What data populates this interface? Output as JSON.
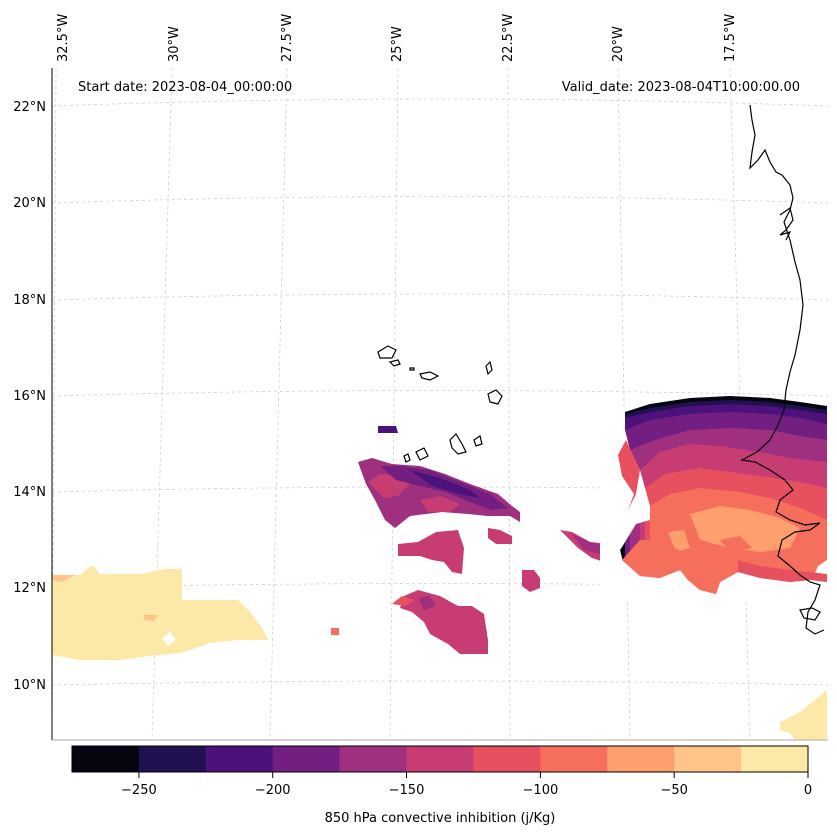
{
  "map": {
    "start_date_label": "Start date: 2023-08-04_00:00:00",
    "valid_date_label": "Valid_date: 2023-08-04T10:00:00.00",
    "lon_labels": [
      "32.5°W",
      "30°W",
      "27.5°W",
      "25°W",
      "22.5°W",
      "20°W",
      "17.5°W"
    ],
    "lat_labels": [
      "22°N",
      "20°N",
      "18°N",
      "16°N",
      "14°N",
      "12°N",
      "10°N"
    ]
  },
  "colorbar": {
    "label": "850 hPa convective inhibition (j/Kg)",
    "ticks": [
      "−250",
      "−200",
      "−150",
      "−100",
      "−50",
      "0"
    ],
    "colors": [
      "#05040f",
      "#221150",
      "#4c117a",
      "#721f81",
      "#9f2f7f",
      "#c73d73",
      "#e6505f",
      "#f66f5c",
      "#fe9f6d",
      "#fec488",
      "#fde9a7"
    ]
  }
}
